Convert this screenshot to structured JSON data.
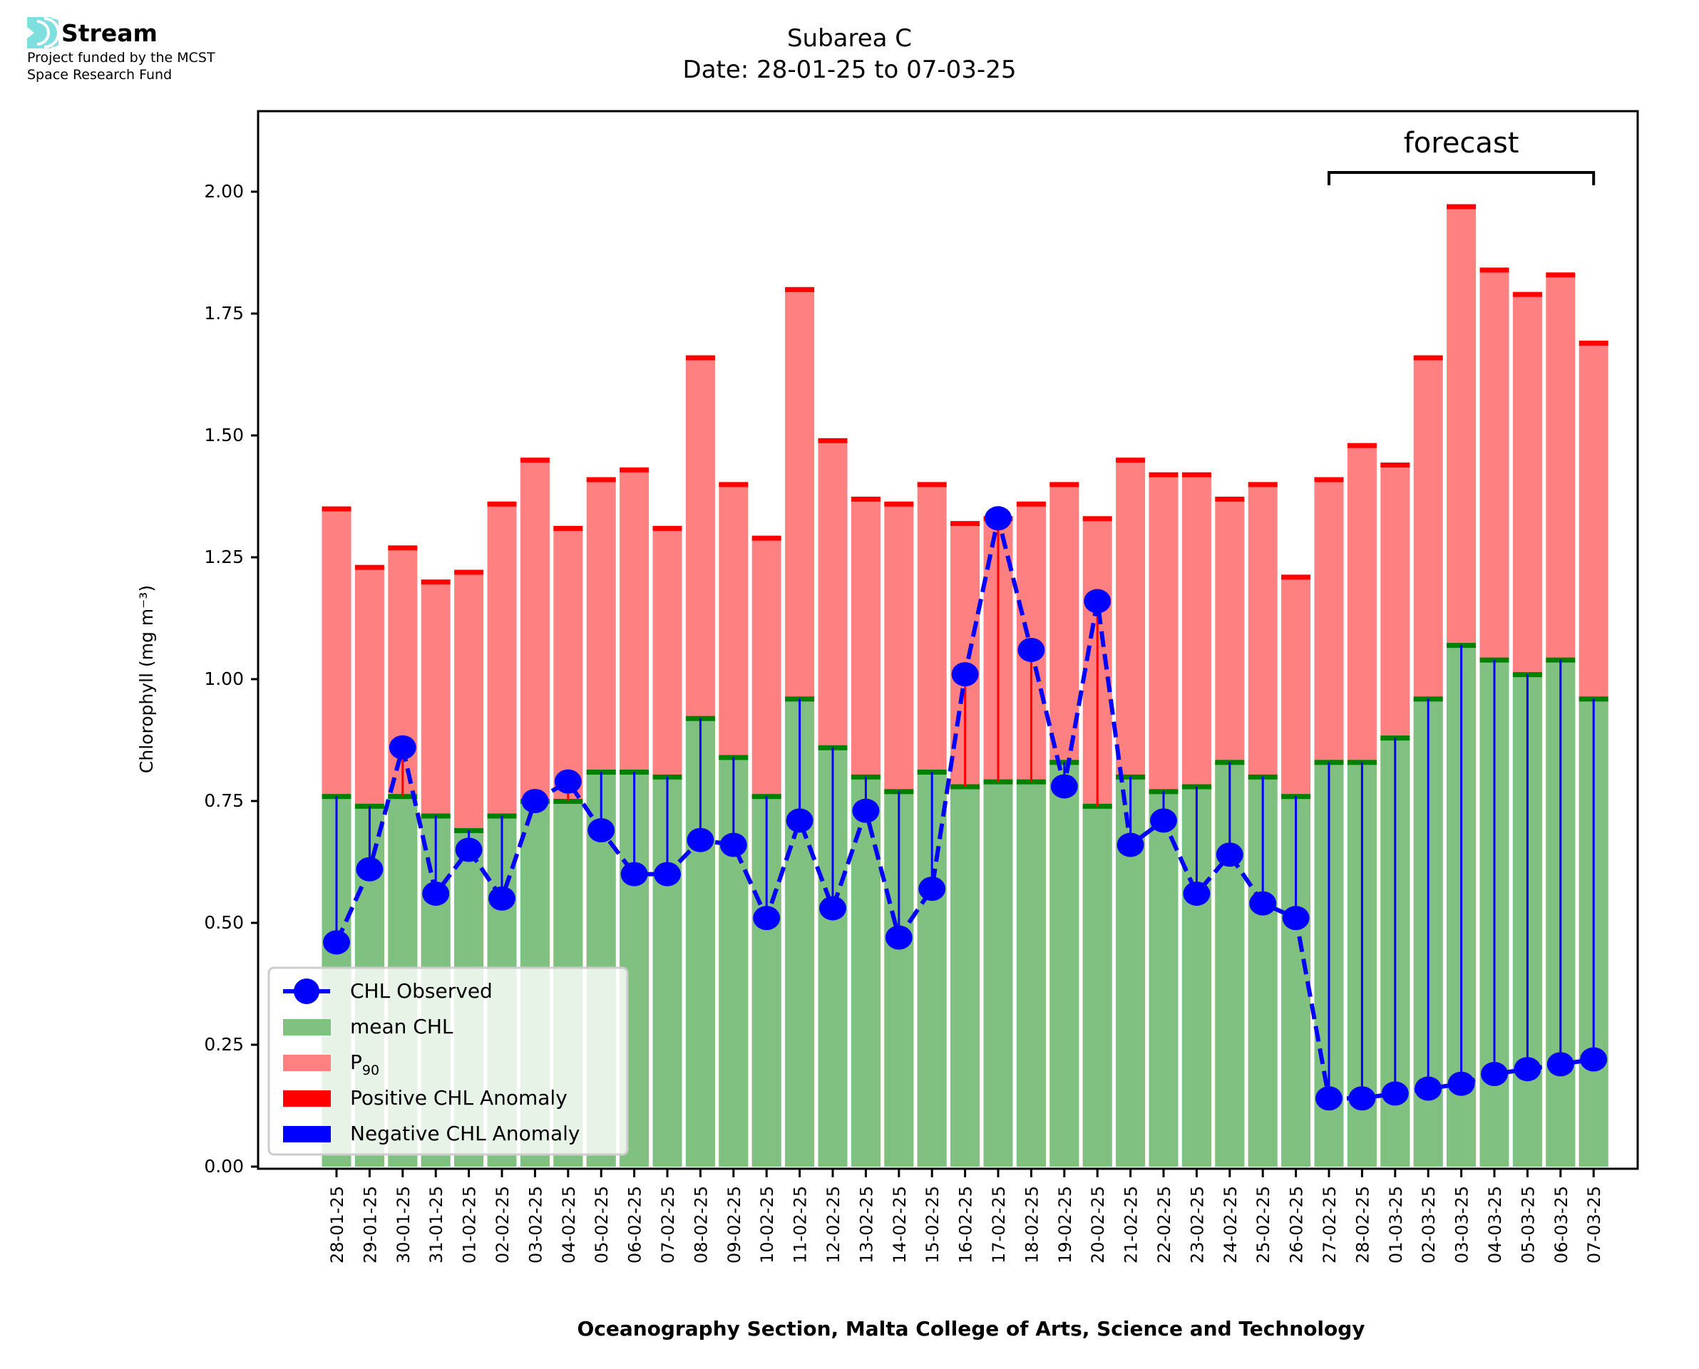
{
  "logo": {
    "name": "Stream",
    "line1": "Project funded by the MCST",
    "line2": "Space Research Fund",
    "icon": "stream-waves-icon",
    "color": "#7fdfdf"
  },
  "header": {
    "title": "Subarea C",
    "subtitle": "Date: 28-01-25 to 07-03-25"
  },
  "footer": {
    "credit": "Oceanography Section, Malta College of Arts, Science and Technology"
  },
  "colors": {
    "mean": "#80c080",
    "mean_edge": "#008000",
    "p90": "#ff8080",
    "p90_edge": "#ff0000",
    "observed": "#0000ff",
    "positive_anomaly": "#ff0000",
    "negative_anomaly": "#0000ff"
  },
  "chart_data": {
    "type": "bar",
    "title": "Subarea C",
    "subtitle": "Date: 28-01-25 to 07-03-25",
    "xlabel": "Oceanography Section, Malta College of Arts, Science and Technology",
    "ylabel": "Chlorophyll (mg m⁻³)",
    "ylim": [
      0,
      2.17
    ],
    "yticks": [
      "0.00",
      "0.25",
      "0.50",
      "0.75",
      "1.00",
      "1.25",
      "1.50",
      "1.75",
      "2.00"
    ],
    "ytick_values": [
      0,
      0.25,
      0.5,
      0.75,
      1.0,
      1.25,
      1.5,
      1.75,
      2.0
    ],
    "grid": false,
    "legend_position": "lower-left",
    "legend": [
      {
        "label": "CHL Observed",
        "kind": "line-marker",
        "color": "#0000ff"
      },
      {
        "label": "mean CHL",
        "kind": "patch",
        "color": "#80c080"
      },
      {
        "label": "P",
        "sub": "90",
        "kind": "patch",
        "color": "#ff8080"
      },
      {
        "label": "Positive CHL Anomaly",
        "kind": "patch",
        "color": "#ff0000"
      },
      {
        "label": "Negative CHL Anomaly",
        "kind": "patch",
        "color": "#0000ff"
      }
    ],
    "annotation": {
      "text": "forecast",
      "from": "27-02-25",
      "to": "07-03-25"
    },
    "categories": [
      "28-01-25",
      "29-01-25",
      "30-01-25",
      "31-01-25",
      "01-02-25",
      "02-02-25",
      "03-02-25",
      "04-02-25",
      "05-02-25",
      "06-02-25",
      "07-02-25",
      "08-02-25",
      "09-02-25",
      "10-02-25",
      "11-02-25",
      "12-02-25",
      "13-02-25",
      "14-02-25",
      "15-02-25",
      "16-02-25",
      "17-02-25",
      "18-02-25",
      "19-02-25",
      "20-02-25",
      "21-02-25",
      "22-02-25",
      "23-02-25",
      "24-02-25",
      "25-02-25",
      "26-02-25",
      "27-02-25",
      "28-02-25",
      "01-03-25",
      "02-03-25",
      "03-03-25",
      "04-03-25",
      "05-03-25",
      "06-03-25",
      "07-03-25"
    ],
    "series": [
      {
        "name": "P90",
        "values": [
          1.35,
          1.23,
          1.27,
          1.2,
          1.22,
          1.36,
          1.45,
          1.31,
          1.41,
          1.43,
          1.31,
          1.66,
          1.4,
          1.29,
          1.8,
          1.49,
          1.37,
          1.36,
          1.4,
          1.32,
          1.33,
          1.36,
          1.4,
          1.33,
          1.45,
          1.42,
          1.42,
          1.37,
          1.4,
          1.21,
          1.41,
          1.48,
          1.44,
          1.66,
          1.97,
          1.84,
          1.79,
          1.83,
          1.69
        ]
      },
      {
        "name": "mean CHL",
        "values": [
          0.76,
          0.74,
          0.76,
          0.72,
          0.69,
          0.72,
          0.75,
          0.75,
          0.81,
          0.81,
          0.8,
          0.92,
          0.84,
          0.76,
          0.96,
          0.86,
          0.8,
          0.77,
          0.81,
          0.78,
          0.79,
          0.79,
          0.83,
          0.74,
          0.8,
          0.77,
          0.78,
          0.83,
          0.8,
          0.76,
          0.83,
          0.83,
          0.88,
          0.96,
          1.07,
          1.04,
          1.01,
          1.04,
          0.96
        ]
      },
      {
        "name": "CHL Observed",
        "values": [
          0.46,
          0.61,
          0.86,
          0.56,
          0.65,
          0.55,
          0.75,
          0.79,
          0.69,
          0.6,
          0.6,
          0.67,
          0.66,
          0.51,
          0.71,
          0.53,
          0.73,
          0.47,
          0.57,
          1.01,
          1.33,
          1.06,
          0.78,
          1.16,
          0.66,
          0.71,
          0.56,
          0.64,
          0.54,
          0.51,
          0.14,
          0.14,
          0.15,
          0.16,
          0.17,
          0.19,
          0.2,
          0.21,
          0.22
        ]
      }
    ]
  }
}
